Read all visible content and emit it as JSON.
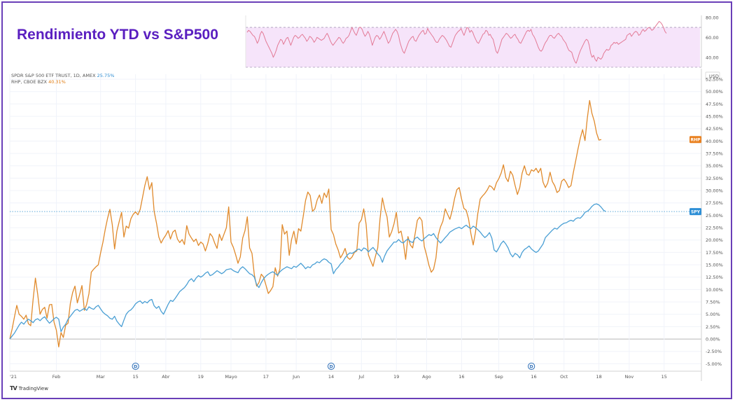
{
  "title": "Rendimiento YTD vs S&P500",
  "legend": {
    "spy_label": "SPDR S&P 500 ETF TRUST, 1D, AMEX",
    "spy_value": "25.75%",
    "rhp_label": "RHP, CBOE BZX",
    "rhp_value": "40.31%"
  },
  "currency": "USD",
  "brand": "TradingView",
  "colors": {
    "spy": "#4a9fd4",
    "rhp": "#e08a2c",
    "rsi": "#e37a96",
    "rsi_band": "#f6e4fa",
    "spy_tag": "#2d8fd6",
    "rhp_tag": "#e9801f"
  },
  "chart_data": [
    {
      "type": "line",
      "y_axis_ticks": [
        "52.50%",
        "50.00%",
        "47.50%",
        "45.00%",
        "42.50%",
        "40.00%",
        "37.50%",
        "35.00%",
        "32.50%",
        "30.00%",
        "27.50%",
        "25.00%",
        "22.50%",
        "20.00%",
        "17.50%",
        "15.00%",
        "12.50%",
        "10.00%",
        "7.50%",
        "5.00%",
        "2.50%",
        "0.00%",
        "-2.50%",
        "-5.00%"
      ],
      "ylim": [
        -6.5,
        53.5
      ],
      "x_axis_ticks": [
        "'21",
        "Feb",
        "Mar",
        "15",
        "Abr",
        "19",
        "Mayo",
        "17",
        "Jun",
        "14",
        "Jul",
        "19",
        "Ago",
        "16",
        "Sep",
        "16",
        "Oct",
        "18",
        "Nov",
        "15"
      ],
      "x_tick_index": [
        0,
        20,
        39,
        54,
        67,
        82,
        95,
        110,
        123,
        138,
        151,
        166,
        179,
        194,
        210,
        225,
        238,
        253,
        266,
        281
      ],
      "dividend_markers": [
        54,
        138,
        224
      ],
      "dividend_label": "D",
      "last_value_tags": [
        {
          "label": "RHP",
          "value": 40.31
        },
        {
          "label": "SPY",
          "value": 25.75
        }
      ],
      "series": [
        {
          "name": "SPY",
          "values": [
            0,
            0.6,
            1.2,
            2.0,
            2.8,
            3.4,
            3.0,
            3.6,
            4.0,
            3.7,
            3.3,
            3.9,
            4.1,
            3.7,
            4.2,
            4.5,
            3.8,
            3.2,
            3.6,
            4.1,
            4.4,
            4.0,
            1.5,
            2.4,
            3.0,
            4.0,
            4.6,
            5.2,
            5.8,
            6.0,
            5.6,
            5.9,
            6.2,
            5.8,
            6.5,
            6.2,
            6.0,
            6.5,
            6.8,
            6.1,
            5.4,
            5.0,
            4.7,
            4.2,
            4.0,
            4.6,
            3.6,
            3.0,
            2.5,
            3.8,
            5.0,
            5.6,
            5.9,
            6.4,
            7.1,
            7.5,
            7.7,
            7.2,
            7.6,
            7.3,
            7.8,
            8.0,
            6.7,
            6.2,
            6.6,
            5.6,
            5.0,
            6.0,
            7.0,
            7.8,
            7.6,
            8.2,
            8.9,
            9.6,
            10.0,
            10.4,
            11.0,
            11.8,
            12.2,
            11.6,
            12.3,
            12.8,
            12.5,
            12.8,
            13.3,
            13.6,
            12.8,
            13.0,
            13.4,
            13.8,
            13.5,
            13.2,
            13.5,
            14.0,
            14.1,
            14.2,
            13.8,
            13.6,
            13.4,
            14.2,
            14.6,
            14.2,
            13.7,
            13.2,
            13.0,
            12.5,
            11.0,
            10.4,
            11.4,
            12.2,
            12.7,
            13.1,
            13.4,
            13.6,
            13.2,
            12.9,
            13.6,
            14.0,
            14.3,
            14.6,
            14.4,
            14.2,
            14.7,
            14.5,
            14.9,
            15.3,
            14.8,
            14.2,
            14.6,
            14.4,
            15.0,
            15.2,
            15.6,
            15.4,
            15.9,
            16.2,
            16.0,
            15.5,
            15.2,
            13.2,
            14.0,
            14.5,
            15.2,
            15.6,
            16.4,
            17.0,
            17.4,
            17.3,
            17.6,
            18.0,
            18.2,
            17.8,
            18.4,
            18.2,
            17.6,
            18.1,
            18.5,
            17.9,
            17.2,
            16.7,
            15.5,
            16.8,
            17.8,
            18.4,
            19.0,
            19.6,
            19.6,
            20.1,
            19.6,
            19.4,
            19.9,
            20.2,
            19.7,
            19.5,
            20.3,
            20.6,
            20.1,
            19.8,
            20.3,
            20.7,
            21.1,
            20.9,
            21.3,
            20.5,
            19.9,
            19.4,
            19.9,
            20.5,
            21.0,
            21.6,
            21.9,
            22.2,
            22.4,
            22.6,
            22.3,
            22.7,
            23.0,
            22.6,
            22.3,
            22.8,
            22.5,
            22.1,
            21.6,
            21.0,
            20.5,
            20.9,
            21.5,
            20.4,
            18.0,
            17.6,
            18.4,
            19.3,
            19.8,
            19.2,
            18.4,
            17.2,
            16.6,
            17.3,
            17.0,
            16.4,
            17.5,
            18.1,
            18.4,
            18.8,
            18.2,
            17.8,
            17.5,
            17.8,
            18.5,
            19.2,
            20.5,
            21.0,
            21.5,
            22.0,
            22.4,
            22.2,
            22.7,
            23.1,
            23.4,
            23.5,
            23.8,
            24.0,
            23.8,
            24.3,
            24.5,
            24.4,
            24.9,
            25.6,
            25.8,
            26.2,
            26.8,
            27.2,
            27.3,
            27.1,
            26.6,
            26.0,
            25.75
          ],
          "color": "#4a9fd4"
        },
        {
          "name": "RHP",
          "values": [
            0,
            2.0,
            4.5,
            6.8,
            5.0,
            4.6,
            4.0,
            4.8,
            3.1,
            2.7,
            8.0,
            12.3,
            9.0,
            5.0,
            6.0,
            6.4,
            4.2,
            6.9,
            7.0,
            3.4,
            1.8,
            -1.6,
            1.3,
            0.3,
            2.8,
            3.2,
            7.2,
            9.4,
            10.7,
            7.3,
            9.0,
            10.8,
            5.8,
            7.0,
            9.2,
            13.5,
            14.1,
            14.6,
            15.0,
            17.4,
            19.6,
            22.2,
            24.4,
            26.2,
            23.1,
            18.2,
            21.8,
            23.8,
            25.6,
            20.6,
            22.8,
            22.4,
            24.3,
            25.2,
            25.7,
            25.1,
            26.2,
            28.6,
            31.0,
            32.8,
            30.2,
            31.6,
            25.8,
            23.4,
            20.6,
            19.4,
            20.3,
            21.0,
            21.9,
            20.2,
            21.6,
            22.0,
            20.2,
            19.5,
            20.1,
            19.1,
            22.9,
            21.2,
            20.4,
            19.7,
            20.2,
            18.9,
            19.6,
            19.2,
            17.8,
            19.3,
            21.3,
            20.7,
            19.4,
            18.3,
            21.2,
            19.9,
            21.2,
            22.5,
            26.7,
            19.6,
            18.5,
            17.0,
            15.3,
            16.6,
            20.4,
            21.9,
            24.7,
            18.4,
            17.3,
            13.0,
            10.7,
            11.4,
            13.1,
            12.5,
            10.9,
            9.2,
            9.8,
            10.6,
            14.4,
            12.7,
            14.2,
            23.1,
            21.2,
            21.8,
            16.9,
            20.1,
            21.8,
            19.2,
            22.3,
            21.8,
            24.8,
            28.0,
            29.7,
            29.0,
            25.8,
            26.3,
            28.1,
            29.1,
            27.4,
            29.5,
            28.6,
            30.3,
            22.1,
            21.1,
            19.2,
            18.0,
            16.4,
            17.2,
            18.3,
            16.5,
            16.1,
            16.6,
            17.5,
            17.8,
            23.4,
            24.1,
            26.3,
            23.2,
            17.0,
            15.8,
            14.7,
            16.7,
            18.4,
            24.3,
            28.5,
            26.3,
            24.7,
            20.6,
            21.7,
            23.3,
            25.6,
            21.4,
            21.8,
            19.5,
            16.1,
            20.7,
            19.0,
            18.4,
            21.1,
            24.0,
            24.6,
            23.9,
            18.7,
            16.9,
            14.9,
            13.5,
            14.1,
            16.4,
            21.0,
            22.7,
            23.8,
            26.3,
            25.2,
            24.2,
            26.0,
            28.4,
            30.2,
            30.6,
            28.3,
            26.4,
            26.0,
            24.3,
            21.3,
            19.0,
            21.6,
            25.4,
            28.3,
            28.9,
            29.4,
            30.1,
            31.0,
            30.7,
            30.1,
            31.6,
            32.4,
            33.5,
            35.2,
            32.6,
            31.8,
            33.9,
            33.1,
            31.0,
            29.2,
            30.6,
            33.5,
            35.0,
            33.3,
            33.1,
            34.2,
            33.9,
            34.5,
            33.6,
            34.5,
            31.7,
            30.6,
            31.5,
            33.7,
            31.8,
            31.0,
            29.6,
            30.0,
            31.9,
            32.3,
            31.6,
            30.6,
            31.0,
            33.6,
            36.0,
            38.4,
            40.6,
            42.3,
            40.1,
            44.6,
            48.2,
            45.6,
            44.0,
            41.6,
            40.2,
            40.31
          ],
          "color": "#e08a2c"
        }
      ]
    },
    {
      "type": "line",
      "y_axis_ticks": [
        "80.00",
        "60.00",
        "40.00"
      ],
      "ylim": [
        30,
        82
      ],
      "band": [
        30,
        70
      ],
      "series": [
        {
          "name": "",
          "values": [
            65,
            67,
            66,
            64,
            62,
            61,
            58,
            54,
            57,
            63,
            66,
            64,
            60,
            56,
            53,
            50,
            47,
            44,
            40,
            43,
            47,
            52,
            55,
            58,
            57,
            53,
            56,
            59,
            60,
            56,
            52,
            56,
            60,
            62,
            61,
            59,
            60,
            62,
            63,
            61,
            59,
            56,
            58,
            61,
            60,
            58,
            55,
            57,
            60,
            59,
            58,
            57,
            58,
            59,
            62,
            64,
            61,
            57,
            54,
            52,
            54,
            56,
            58,
            60,
            59,
            56,
            54,
            56,
            59,
            60,
            62,
            66,
            70,
            67,
            64,
            62,
            66,
            70,
            70,
            68,
            64,
            61,
            63,
            66,
            63,
            58,
            52,
            56,
            60,
            62,
            61,
            58,
            60,
            63,
            66,
            62,
            58,
            54,
            56,
            60,
            64,
            66,
            68,
            66,
            62,
            55,
            50,
            46,
            44,
            48,
            52,
            56,
            58,
            60,
            61,
            57,
            56,
            59,
            62,
            64,
            66,
            67,
            63,
            64,
            69,
            66,
            64,
            62,
            60,
            57,
            55,
            55,
            58,
            60,
            62,
            61,
            59,
            57,
            54,
            51,
            50,
            54,
            58,
            62,
            64,
            66,
            67,
            69,
            65,
            62,
            66,
            70,
            69,
            65,
            67,
            65,
            61,
            58,
            55,
            54,
            57,
            60,
            63,
            64,
            67,
            66,
            62,
            63,
            60,
            58,
            52,
            46,
            44,
            48,
            53,
            58,
            60,
            62,
            64,
            63,
            61,
            59,
            60,
            62,
            63,
            60,
            58,
            55,
            54,
            57,
            60,
            63,
            66,
            67,
            66,
            68,
            63,
            61,
            58,
            54,
            50,
            47,
            46,
            48,
            52,
            55,
            57,
            60,
            62,
            62,
            60,
            59,
            61,
            63,
            64,
            62,
            61,
            58,
            56,
            54,
            50,
            47,
            46,
            45,
            40,
            36,
            34,
            38,
            43,
            47,
            50,
            53,
            56,
            58,
            57,
            52,
            44,
            40,
            42,
            38,
            36,
            40,
            39,
            38,
            40,
            44,
            46,
            48,
            47,
            48,
            52,
            53,
            55,
            54,
            55,
            53,
            54,
            55,
            56,
            57,
            58,
            62,
            63,
            64,
            61,
            63,
            65,
            66,
            65,
            62,
            63,
            66,
            68,
            66,
            67,
            69,
            70,
            69,
            67,
            68,
            70,
            72,
            74,
            76,
            75,
            73,
            70,
            66,
            64
          ],
          "color": "#e37a96"
        }
      ]
    }
  ]
}
